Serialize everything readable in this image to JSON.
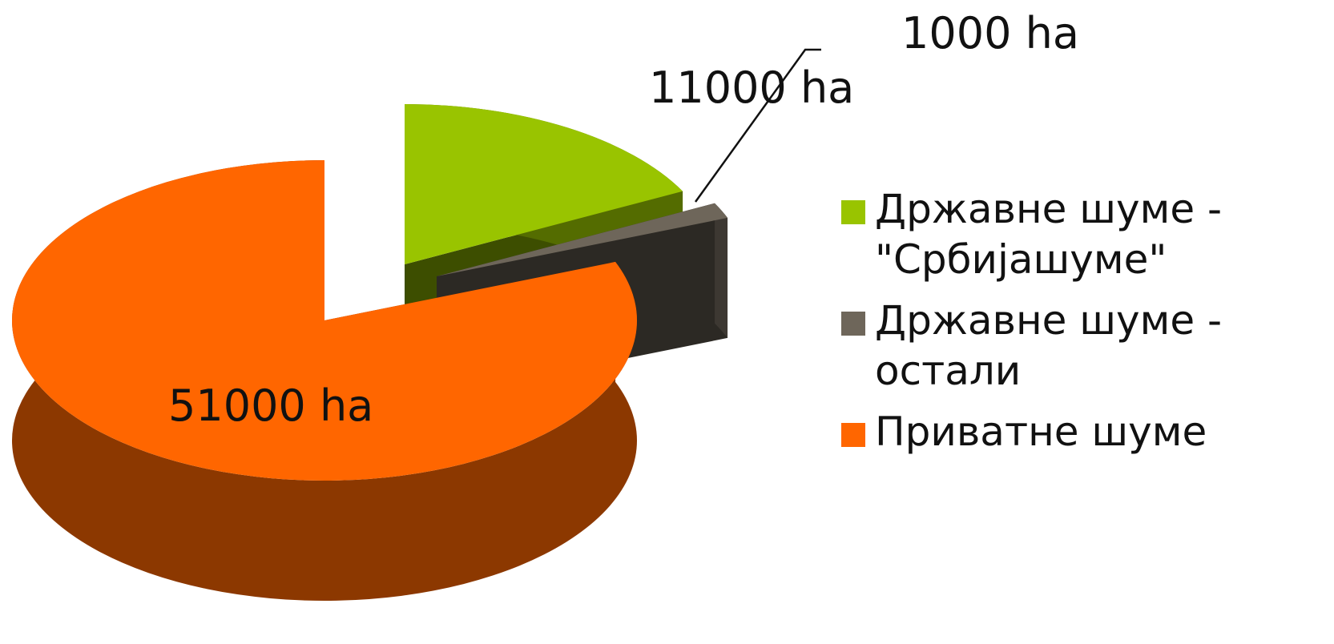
{
  "chart_data": {
    "type": "pie",
    "categories": [
      "Државне шуме - \"Србијашуме\"",
      "Државне шуме - остали",
      "Приватне шуме"
    ],
    "values": [
      11000,
      1000,
      51000
    ],
    "value_labels": [
      "11000 ha",
      "1000 ha",
      "51000 ha"
    ],
    "colors": [
      "#99c400",
      "#6e665a",
      "#ff6600"
    ],
    "legend": "right"
  }
}
